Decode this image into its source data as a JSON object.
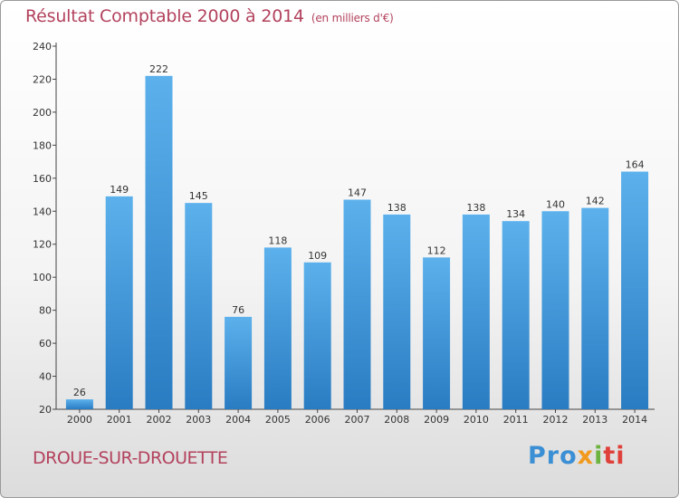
{
  "header": {
    "title": "Résultat Comptable 2000 à 2014",
    "subtitle": "(en milliers d'€)"
  },
  "footer": {
    "town": "DROUE-SUR-DROUETTE",
    "logo_parts": [
      "Pro",
      "x",
      "i",
      "ti"
    ]
  },
  "chart_data": {
    "type": "bar",
    "title": "Résultat Comptable 2000 à 2014",
    "subtitle": "(en milliers d'€)",
    "categories": [
      "2000",
      "2001",
      "2002",
      "2003",
      "2004",
      "2005",
      "2006",
      "2007",
      "2008",
      "2009",
      "2010",
      "2011",
      "2012",
      "2013",
      "2014"
    ],
    "values": [
      26,
      149,
      222,
      145,
      76,
      118,
      109,
      147,
      138,
      112,
      138,
      134,
      140,
      142,
      164
    ],
    "ylim": [
      20,
      240
    ],
    "yticks": [
      20,
      40,
      60,
      80,
      100,
      120,
      140,
      160,
      180,
      200,
      220,
      240
    ],
    "grid": false,
    "bar_color": "#4a9fdd"
  }
}
